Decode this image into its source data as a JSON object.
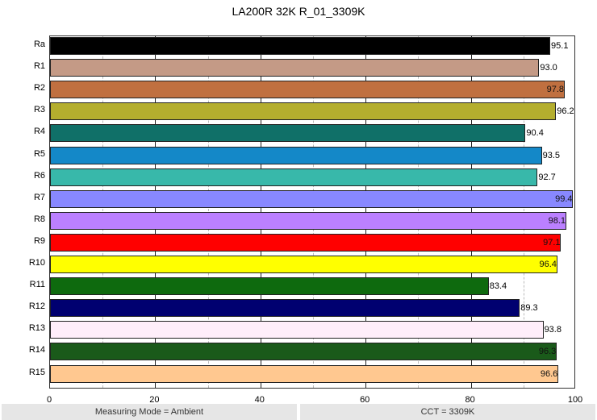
{
  "chart_data": {
    "type": "bar",
    "orientation": "horizontal",
    "title": "LA200R 32K R_01_3309K",
    "xlabel": "",
    "ylabel": "",
    "xlim": [
      0,
      100
    ],
    "xticks": [
      0,
      20,
      40,
      60,
      80,
      100
    ],
    "grid": true,
    "categories": [
      "Ra",
      "R1",
      "R2",
      "R3",
      "R4",
      "R5",
      "R6",
      "R7",
      "R8",
      "R9",
      "R10",
      "R11",
      "R12",
      "R13",
      "R14",
      "R15"
    ],
    "values": [
      95.1,
      93.0,
      97.8,
      96.2,
      90.4,
      93.5,
      92.7,
      99.4,
      98.1,
      97.1,
      96.4,
      83.4,
      89.3,
      93.8,
      96.3,
      96.6
    ],
    "colors": [
      "#000000",
      "#c49a86",
      "#c07040",
      "#b4ae2e",
      "#107068",
      "#1488c8",
      "#38b8aa",
      "#8888ff",
      "#bb80ff",
      "#ff0000",
      "#ffff00",
      "#0e6a0e",
      "#000070",
      "#ffeefa",
      "#1a5a1a",
      "#ffc890"
    ],
    "label_inside": [
      false,
      false,
      true,
      false,
      false,
      false,
      false,
      true,
      true,
      true,
      true,
      false,
      false,
      false,
      true,
      true
    ]
  },
  "footer": {
    "left": "Measuring Mode = Ambient",
    "right": "CCT = 3309K"
  }
}
